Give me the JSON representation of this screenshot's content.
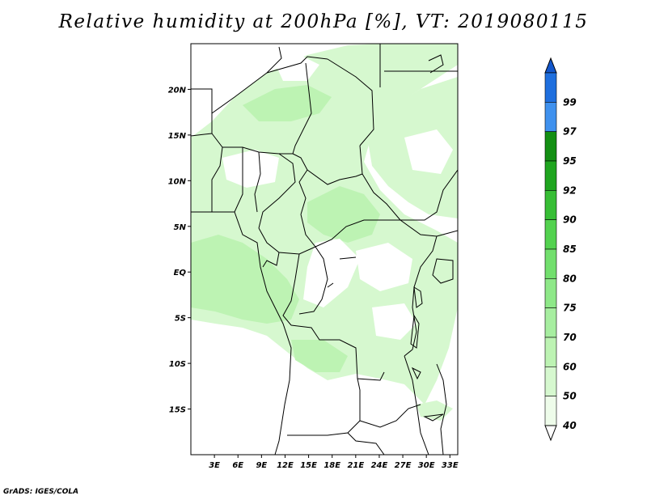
{
  "title": "Relative humidity at 200hPa [%], VT: 2019080115",
  "credit": "GrADS: IGES/COLA",
  "map": {
    "lon_range": [
      0,
      34
    ],
    "lat_range": [
      -20,
      25
    ],
    "lat_ticks": [
      {
        "value": 20,
        "label": "20N"
      },
      {
        "value": 15,
        "label": "15N"
      },
      {
        "value": 10,
        "label": "10N"
      },
      {
        "value": 5,
        "label": "5N"
      },
      {
        "value": 0,
        "label": "EQ"
      },
      {
        "value": -5,
        "label": "5S"
      },
      {
        "value": -10,
        "label": "10S"
      },
      {
        "value": -15,
        "label": "15S"
      }
    ],
    "lon_ticks": [
      {
        "value": 3,
        "label": "3E"
      },
      {
        "value": 6,
        "label": "6E"
      },
      {
        "value": 9,
        "label": "9E"
      },
      {
        "value": 12,
        "label": "12E"
      },
      {
        "value": 15,
        "label": "15E"
      },
      {
        "value": 18,
        "label": "18E"
      },
      {
        "value": 21,
        "label": "21E"
      },
      {
        "value": 24,
        "label": "24E"
      },
      {
        "value": 27,
        "label": "27E"
      },
      {
        "value": 30,
        "label": "30E"
      },
      {
        "value": 33,
        "label": "33E"
      }
    ]
  },
  "colorbar": {
    "levels": [
      "40",
      "50",
      "60",
      "70",
      "75",
      "80",
      "85",
      "90",
      "92",
      "95",
      "97",
      "99"
    ],
    "colors": [
      "#eefcea",
      "#d6f8cf",
      "#bdf3b3",
      "#a7eea0",
      "#8ee888",
      "#72df6d",
      "#53d24f",
      "#37be35",
      "#1fa51f",
      "#138f13",
      "#3f91ee",
      "#1f6fde",
      "#1357cc"
    ],
    "under_color": "#ffffff"
  },
  "colors": {
    "humidity_light": "#d6f8cf",
    "humidity_mid": "#bdf3b3",
    "border": "#000000"
  }
}
